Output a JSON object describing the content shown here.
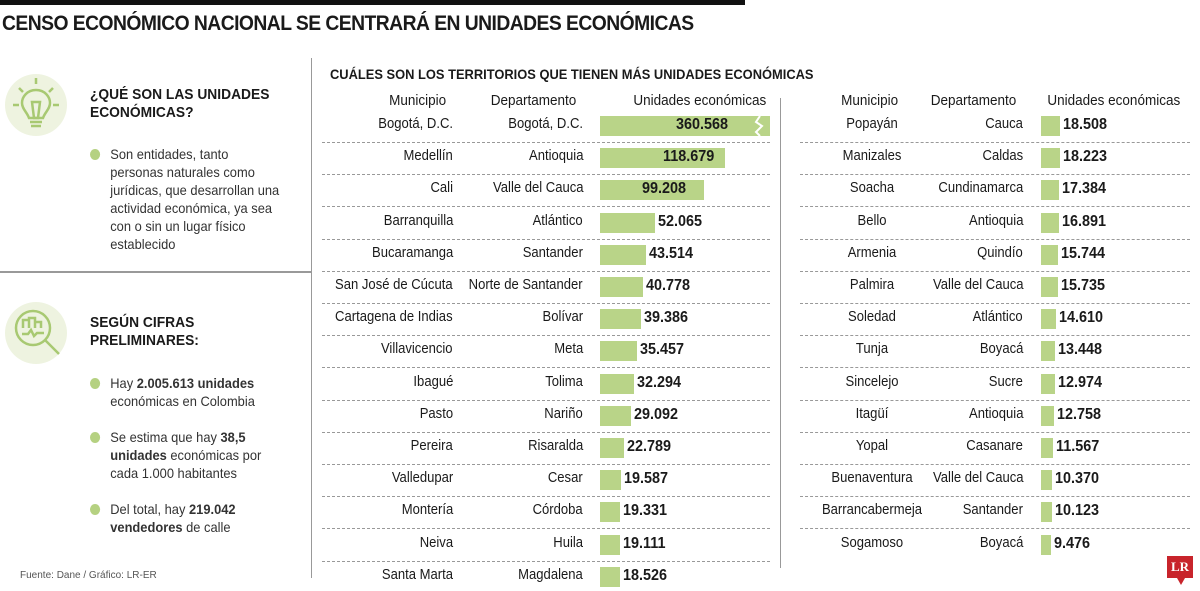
{
  "title": "CENSO ECONÓMICO NACIONAL SE CENTRARÁ EN UNIDADES ECONÓMICAS",
  "left": {
    "section1": {
      "title_line1": "¿QUÉ SON LAS UNIDADES",
      "title_line2": "ECONÓMICAS?",
      "icon": "lightbulb-icon",
      "bullet": "Son entidades, tanto personas naturales como jurídicas, que desarrollan una actividad económica, ya sea con o sin un lugar físico establecido"
    },
    "section2": {
      "title_line1": "SEGÚN CIFRAS",
      "title_line2": "PRELIMINARES:",
      "icon": "magnifier-chart-icon",
      "b1_pre": "Hay ",
      "b1_bold": "2.005.613 unidades",
      "b1_post": " económicas en Colombia",
      "b2_pre": "Se estima que hay ",
      "b2_bold": "38,5 unidades",
      "b2_post": " económicas por cada 1.000 habitantes",
      "b3_pre": "Del total, hay ",
      "b3_bold": "219.042 vendedores",
      "b3_post": " de calle"
    },
    "source": "Fuente: Dane / Gráfico: LR-ER"
  },
  "logo": "LR",
  "colors": {
    "bar": "#b9d488",
    "bullet": "#b5d181",
    "logo": "#c8242b"
  },
  "chart_data": {
    "type": "bar",
    "title": "CUÁLES SON LOS TERRITORIOS QUE TIENEN MÁS UNIDADES ECONÓMICAS",
    "columns": [
      "Municipio",
      "Departamento",
      "Unidades económicas"
    ],
    "note_truncated_bar": "Bogotá, D.C.",
    "rows": [
      [
        "Bogotá, D.C.",
        "Bogotá, D.C.",
        360568,
        "360.568"
      ],
      [
        "Medellín",
        "Antioquia",
        118679,
        "118.679"
      ],
      [
        "Cali",
        "Valle del Cauca",
        99208,
        "99.208"
      ],
      [
        "Barranquilla",
        "Atlántico",
        52065,
        "52.065"
      ],
      [
        "Bucaramanga",
        "Santander",
        43514,
        "43.514"
      ],
      [
        "San José de Cúcuta",
        "Norte de Santander",
        40778,
        "40.778"
      ],
      [
        "Cartagena de Indias",
        "Bolívar",
        39386,
        "39.386"
      ],
      [
        "Villavicencio",
        "Meta",
        35457,
        "35.457"
      ],
      [
        "Ibagué",
        "Tolima",
        32294,
        "32.294"
      ],
      [
        "Pasto",
        "Nariño",
        29092,
        "29.092"
      ],
      [
        "Pereira",
        "Risaralda",
        22789,
        "22.789"
      ],
      [
        "Valledupar",
        "Cesar",
        19587,
        "19.587"
      ],
      [
        "Montería",
        "Córdoba",
        19331,
        "19.331"
      ],
      [
        "Neiva",
        "Huila",
        19111,
        "19.111"
      ],
      [
        "Santa Marta",
        "Magdalena",
        18526,
        "18.526"
      ],
      [
        "Popayán",
        "Cauca",
        18508,
        "18.508"
      ],
      [
        "Manizales",
        "Caldas",
        18223,
        "18.223"
      ],
      [
        "Soacha",
        "Cundinamarca",
        17384,
        "17.384"
      ],
      [
        "Bello",
        "Antioquia",
        16891,
        "16.891"
      ],
      [
        "Armenia",
        "Quindío",
        15744,
        "15.744"
      ],
      [
        "Palmira",
        "Valle del Cauca",
        15735,
        "15.735"
      ],
      [
        "Soledad",
        "Atlántico",
        14610,
        "14.610"
      ],
      [
        "Tunja",
        "Boyacá",
        13448,
        "13.448"
      ],
      [
        "Sincelejo",
        "Sucre",
        12974,
        "12.974"
      ],
      [
        "Itagüí",
        "Antioquia",
        12758,
        "12.758"
      ],
      [
        "Yopal",
        "Casanare",
        11567,
        "11.567"
      ],
      [
        "Buenaventura",
        "Valle del Cauca",
        10370,
        "10.370"
      ],
      [
        "Barrancabermeja",
        "Santander",
        10123,
        "10.123"
      ],
      [
        "Sogamoso",
        "Boyacá",
        9476,
        "9.476"
      ]
    ]
  }
}
